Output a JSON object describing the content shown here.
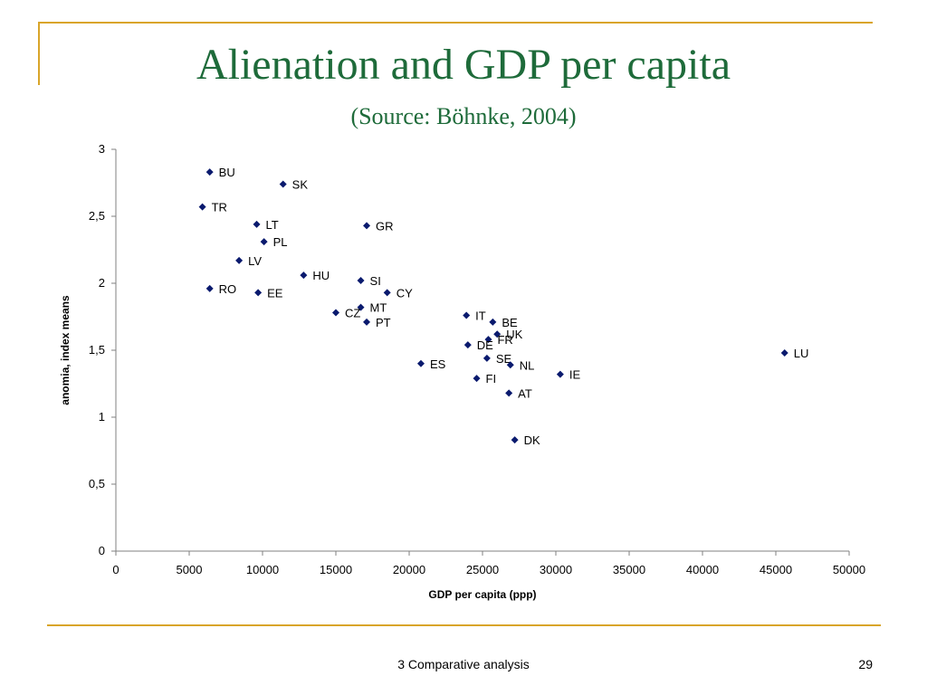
{
  "colors": {
    "frame": "#d9a52a",
    "title": "#1e6b3a",
    "marker": "#0a1a6e",
    "axis": "#000000"
  },
  "slide": {
    "title": "Alienation and GDP per capita",
    "subtitle": "(Source: Böhnke, 2004)",
    "footer": "3 Comparative analysis",
    "page_number": "29"
  },
  "chart_data": {
    "type": "scatter",
    "xlabel": "GDP per capita (ppp)",
    "ylabel": "anomia, index means",
    "xlim": [
      0,
      50000
    ],
    "ylim": [
      0,
      3
    ],
    "x_ticks": [
      "0",
      "5000",
      "10000",
      "15000",
      "20000",
      "25000",
      "30000",
      "35000",
      "40000",
      "45000",
      "50000"
    ],
    "y_ticks": [
      "0",
      "0,5",
      "1",
      "1,5",
      "2",
      "2,5",
      "3"
    ],
    "grid": false,
    "points": [
      {
        "label": "BU",
        "x": 6400,
        "y": 2.83
      },
      {
        "label": "SK",
        "x": 11400,
        "y": 2.74
      },
      {
        "label": "TR",
        "x": 5900,
        "y": 2.57
      },
      {
        "label": "LT",
        "x": 9600,
        "y": 2.44
      },
      {
        "label": "GR",
        "x": 17100,
        "y": 2.43
      },
      {
        "label": "PL",
        "x": 10100,
        "y": 2.31
      },
      {
        "label": "LV",
        "x": 8400,
        "y": 2.17
      },
      {
        "label": "HU",
        "x": 12800,
        "y": 2.06
      },
      {
        "label": "SI",
        "x": 16700,
        "y": 2.02
      },
      {
        "label": "RO",
        "x": 6400,
        "y": 1.96
      },
      {
        "label": "EE",
        "x": 9700,
        "y": 1.93
      },
      {
        "label": "CY",
        "x": 18500,
        "y": 1.93
      },
      {
        "label": "MT",
        "x": 16700,
        "y": 1.82
      },
      {
        "label": "CZ",
        "x": 15000,
        "y": 1.78
      },
      {
        "label": "IT",
        "x": 23900,
        "y": 1.76
      },
      {
        "label": "PT",
        "x": 17100,
        "y": 1.71
      },
      {
        "label": "BE",
        "x": 25700,
        "y": 1.71
      },
      {
        "label": "UK",
        "x": 26000,
        "y": 1.62
      },
      {
        "label": "FR",
        "x": 25400,
        "y": 1.58
      },
      {
        "label": "DE",
        "x": 24000,
        "y": 1.54
      },
      {
        "label": "SE",
        "x": 25300,
        "y": 1.44
      },
      {
        "label": "ES",
        "x": 20800,
        "y": 1.4
      },
      {
        "label": "NL",
        "x": 26900,
        "y": 1.39
      },
      {
        "label": "LU",
        "x": 45600,
        "y": 1.48
      },
      {
        "label": "IE",
        "x": 30300,
        "y": 1.32
      },
      {
        "label": "FI",
        "x": 24600,
        "y": 1.29
      },
      {
        "label": "AT",
        "x": 26800,
        "y": 1.18
      },
      {
        "label": "DK",
        "x": 27200,
        "y": 0.83
      }
    ]
  }
}
